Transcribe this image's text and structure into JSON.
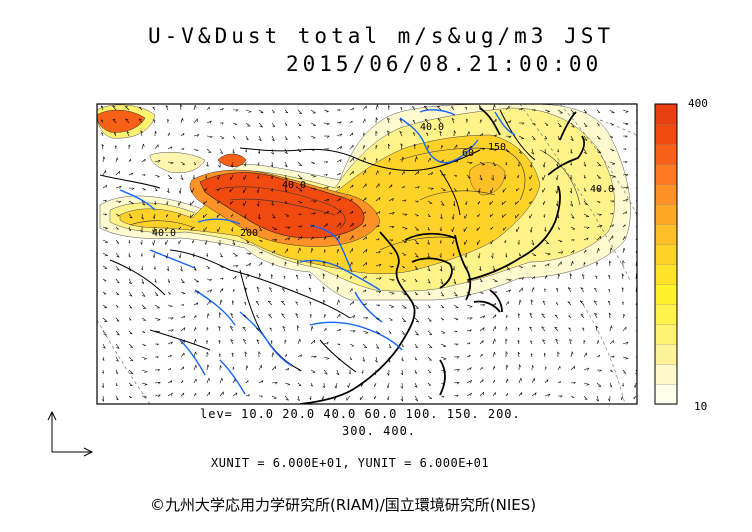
{
  "title": {
    "line1": "U-V&Dust total m/s&ug/m3 JST",
    "line2": "2015/06/08.21:00:00"
  },
  "levels": {
    "line1": "lev= 10.0 20.0 40.0 60.0 100. 150. 200.",
    "line2": "300. 400."
  },
  "units": "XUNIT = 6.000E+01, YUNIT = 6.000E+01",
  "colorbar": {
    "max_label": "400",
    "min_label": "10",
    "colors": [
      "#ffffee",
      "#fff8c8",
      "#fff39a",
      "#fff270",
      "#fff24a",
      "#fff22a",
      "#ffe22a",
      "#ffd22a",
      "#ffbf28",
      "#ffa828",
      "#ff9226",
      "#ff7a20",
      "#f86018",
      "#f04a10",
      "#e84010"
    ]
  },
  "contour_labels": [
    "40.0",
    "40.0",
    "40.0",
    "40.0",
    "60",
    "150",
    "200"
  ],
  "colors": {
    "coast": "#000000",
    "river": "#1565ff",
    "dust_core": "#f04a10",
    "dust_high": "#ff9226",
    "dust_mid": "#ffd22a",
    "dust_low": "#fff270",
    "dust_faint": "#fffad0"
  },
  "credit": "©九州大学応用力学研究所(RIAM)/国立環境研究所(NIES)"
}
